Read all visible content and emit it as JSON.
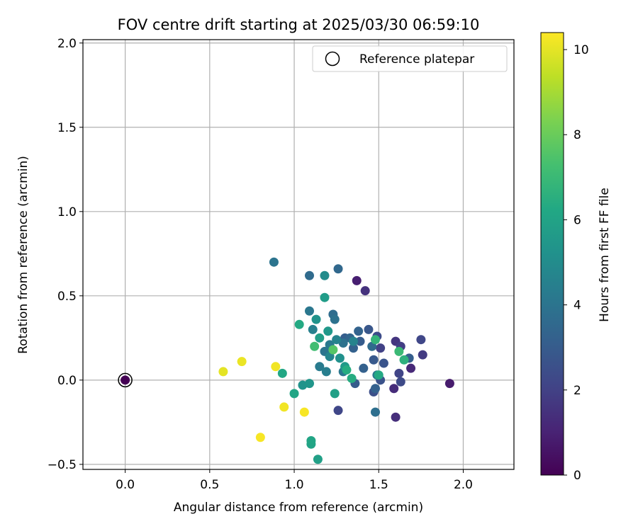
{
  "chart_data": {
    "type": "scatter",
    "title": "FOV centre drift starting at 2025/03/30 06:59:10",
    "xlabel": "Angular distance from reference (arcmin)",
    "ylabel": "Rotation from reference (arcmin)",
    "xlim": [
      -0.25,
      2.3
    ],
    "ylim": [
      -0.53,
      2.02
    ],
    "xticks": [
      0.0,
      0.5,
      1.0,
      1.5,
      2.0
    ],
    "yticks": [
      -0.5,
      0.0,
      0.5,
      1.0,
      1.5,
      2.0
    ],
    "xtick_labels": [
      "0.0",
      "0.5",
      "1.0",
      "1.5",
      "2.0"
    ],
    "ytick_labels": [
      "−0.5",
      "0.0",
      "0.5",
      "1.0",
      "1.5",
      "2.0"
    ],
    "grid": true,
    "legend": {
      "position": "top-right",
      "entries": [
        "Reference platepar"
      ]
    },
    "colorbar": {
      "label": "Hours from first FF file",
      "range": [
        0,
        10.4
      ],
      "ticks": [
        0,
        2,
        4,
        6,
        8,
        10
      ],
      "tick_labels": [
        "0",
        "2",
        "4",
        "6",
        "8",
        "10"
      ],
      "colormap": "viridis"
    },
    "reference": {
      "x": 0.0,
      "y": 0.0,
      "hours": 0.0
    },
    "points": [
      {
        "x": 1.92,
        "y": -0.02,
        "h": 0.8
      },
      {
        "x": 1.37,
        "y": 0.59,
        "h": 0.9
      },
      {
        "x": 1.69,
        "y": 0.07,
        "h": 1.2
      },
      {
        "x": 1.42,
        "y": 0.53,
        "h": 1.5
      },
      {
        "x": 1.6,
        "y": 0.23,
        "h": 1.6
      },
      {
        "x": 1.6,
        "y": -0.22,
        "h": 1.4
      },
      {
        "x": 1.76,
        "y": 0.15,
        "h": 1.8
      },
      {
        "x": 1.75,
        "y": 0.24,
        "h": 2.2
      },
      {
        "x": 1.51,
        "y": 0.19,
        "h": 2.0
      },
      {
        "x": 1.63,
        "y": 0.2,
        "h": 1.9
      },
      {
        "x": 1.59,
        "y": -0.05,
        "h": 1.3
      },
      {
        "x": 1.62,
        "y": 0.04,
        "h": 2.1
      },
      {
        "x": 1.63,
        "y": -0.01,
        "h": 2.3
      },
      {
        "x": 1.49,
        "y": 0.26,
        "h": 2.4
      },
      {
        "x": 1.26,
        "y": -0.18,
        "h": 2.2
      },
      {
        "x": 1.47,
        "y": -0.07,
        "h": 2.5
      },
      {
        "x": 1.51,
        "y": 0.0,
        "h": 2.6
      },
      {
        "x": 1.53,
        "y": 0.1,
        "h": 2.7
      },
      {
        "x": 1.47,
        "y": 0.12,
        "h": 2.9
      },
      {
        "x": 1.44,
        "y": 0.3,
        "h": 2.8
      },
      {
        "x": 1.39,
        "y": 0.23,
        "h": 3.0
      },
      {
        "x": 1.3,
        "y": 0.25,
        "h": 3.1
      },
      {
        "x": 1.36,
        "y": -0.02,
        "h": 3.0
      },
      {
        "x": 1.41,
        "y": 0.07,
        "h": 3.2
      },
      {
        "x": 1.68,
        "y": 0.13,
        "h": 3.1
      },
      {
        "x": 1.48,
        "y": -0.05,
        "h": 3.2
      },
      {
        "x": 1.35,
        "y": 0.19,
        "h": 3.2
      },
      {
        "x": 1.38,
        "y": 0.29,
        "h": 3.3
      },
      {
        "x": 1.33,
        "y": 0.25,
        "h": 3.4
      },
      {
        "x": 1.26,
        "y": 0.66,
        "h": 3.5
      },
      {
        "x": 1.09,
        "y": 0.62,
        "h": 3.6
      },
      {
        "x": 1.23,
        "y": 0.39,
        "h": 3.7
      },
      {
        "x": 1.46,
        "y": 0.2,
        "h": 3.6
      },
      {
        "x": 1.48,
        "y": -0.19,
        "h": 3.8
      },
      {
        "x": 1.29,
        "y": 0.22,
        "h": 3.9
      },
      {
        "x": 1.24,
        "y": 0.36,
        "h": 3.9
      },
      {
        "x": 1.18,
        "y": 0.17,
        "h": 4.0
      },
      {
        "x": 0.88,
        "y": 0.7,
        "h": 4.0
      },
      {
        "x": 1.09,
        "y": 0.41,
        "h": 4.1
      },
      {
        "x": 1.21,
        "y": 0.21,
        "h": 4.2
      },
      {
        "x": 1.29,
        "y": 0.05,
        "h": 4.1
      },
      {
        "x": 1.15,
        "y": 0.08,
        "h": 4.3
      },
      {
        "x": 1.49,
        "y": 0.03,
        "h": 4.2
      },
      {
        "x": 1.19,
        "y": 0.05,
        "h": 4.4
      },
      {
        "x": 1.11,
        "y": 0.3,
        "h": 4.5
      },
      {
        "x": 1.25,
        "y": 0.24,
        "h": 4.6
      },
      {
        "x": 1.21,
        "y": 0.14,
        "h": 4.7
      },
      {
        "x": 1.35,
        "y": 0.23,
        "h": 4.6
      },
      {
        "x": 1.18,
        "y": 0.62,
        "h": 5.0
      },
      {
        "x": 1.27,
        "y": 0.13,
        "h": 5.2
      },
      {
        "x": 1.13,
        "y": 0.36,
        "h": 5.3
      },
      {
        "x": 1.05,
        "y": -0.03,
        "h": 5.3
      },
      {
        "x": 1.09,
        "y": -0.02,
        "h": 5.4
      },
      {
        "x": 1.2,
        "y": 0.29,
        "h": 5.5
      },
      {
        "x": 1.3,
        "y": 0.08,
        "h": 5.6
      },
      {
        "x": 1.18,
        "y": 0.49,
        "h": 5.7
      },
      {
        "x": 1.15,
        "y": 0.25,
        "h": 5.8
      },
      {
        "x": 1.24,
        "y": -0.08,
        "h": 5.9
      },
      {
        "x": 1.14,
        "y": -0.47,
        "h": 5.9
      },
      {
        "x": 1.1,
        "y": -0.38,
        "h": 6.0
      },
      {
        "x": 1.1,
        "y": -0.36,
        "h": 6.1
      },
      {
        "x": 0.93,
        "y": 0.04,
        "h": 6.2
      },
      {
        "x": 1.0,
        "y": -0.08,
        "h": 6.1
      },
      {
        "x": 1.03,
        "y": 0.33,
        "h": 6.3
      },
      {
        "x": 1.31,
        "y": 0.06,
        "h": 6.4
      },
      {
        "x": 1.34,
        "y": 0.01,
        "h": 6.4
      },
      {
        "x": 1.5,
        "y": 0.03,
        "h": 6.3
      },
      {
        "x": 1.65,
        "y": 0.12,
        "h": 6.6
      },
      {
        "x": 1.48,
        "y": 0.24,
        "h": 6.8
      },
      {
        "x": 1.62,
        "y": 0.17,
        "h": 7.0
      },
      {
        "x": 1.12,
        "y": 0.2,
        "h": 7.2
      },
      {
        "x": 1.23,
        "y": 0.18,
        "h": 7.6
      },
      {
        "x": 0.58,
        "y": 0.05,
        "h": 10.0
      },
      {
        "x": 0.69,
        "y": 0.11,
        "h": 10.1
      },
      {
        "x": 0.89,
        "y": 0.08,
        "h": 10.2
      },
      {
        "x": 0.94,
        "y": -0.16,
        "h": 10.2
      },
      {
        "x": 1.06,
        "y": -0.19,
        "h": 10.3
      },
      {
        "x": 0.8,
        "y": -0.34,
        "h": 10.3
      }
    ]
  }
}
